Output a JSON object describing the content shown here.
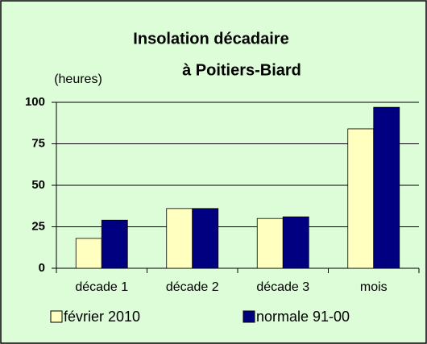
{
  "chart_data": {
    "type": "bar",
    "title": [
      "Insolation décadaire",
      "à Poitiers-Biard"
    ],
    "y_label": "(heures)",
    "categories": [
      "décade 1",
      "décade 2",
      "décade 3",
      "mois"
    ],
    "series": [
      {
        "name": "février 2010",
        "color": "#ffffc0",
        "values": [
          18,
          36,
          30,
          84
        ]
      },
      {
        "name": "normale 91-00",
        "color": "#000080",
        "values": [
          29,
          36,
          31,
          97
        ]
      }
    ],
    "ylim": [
      0,
      100
    ],
    "yticks": [
      0,
      25,
      50,
      75,
      100
    ],
    "grid": true
  }
}
